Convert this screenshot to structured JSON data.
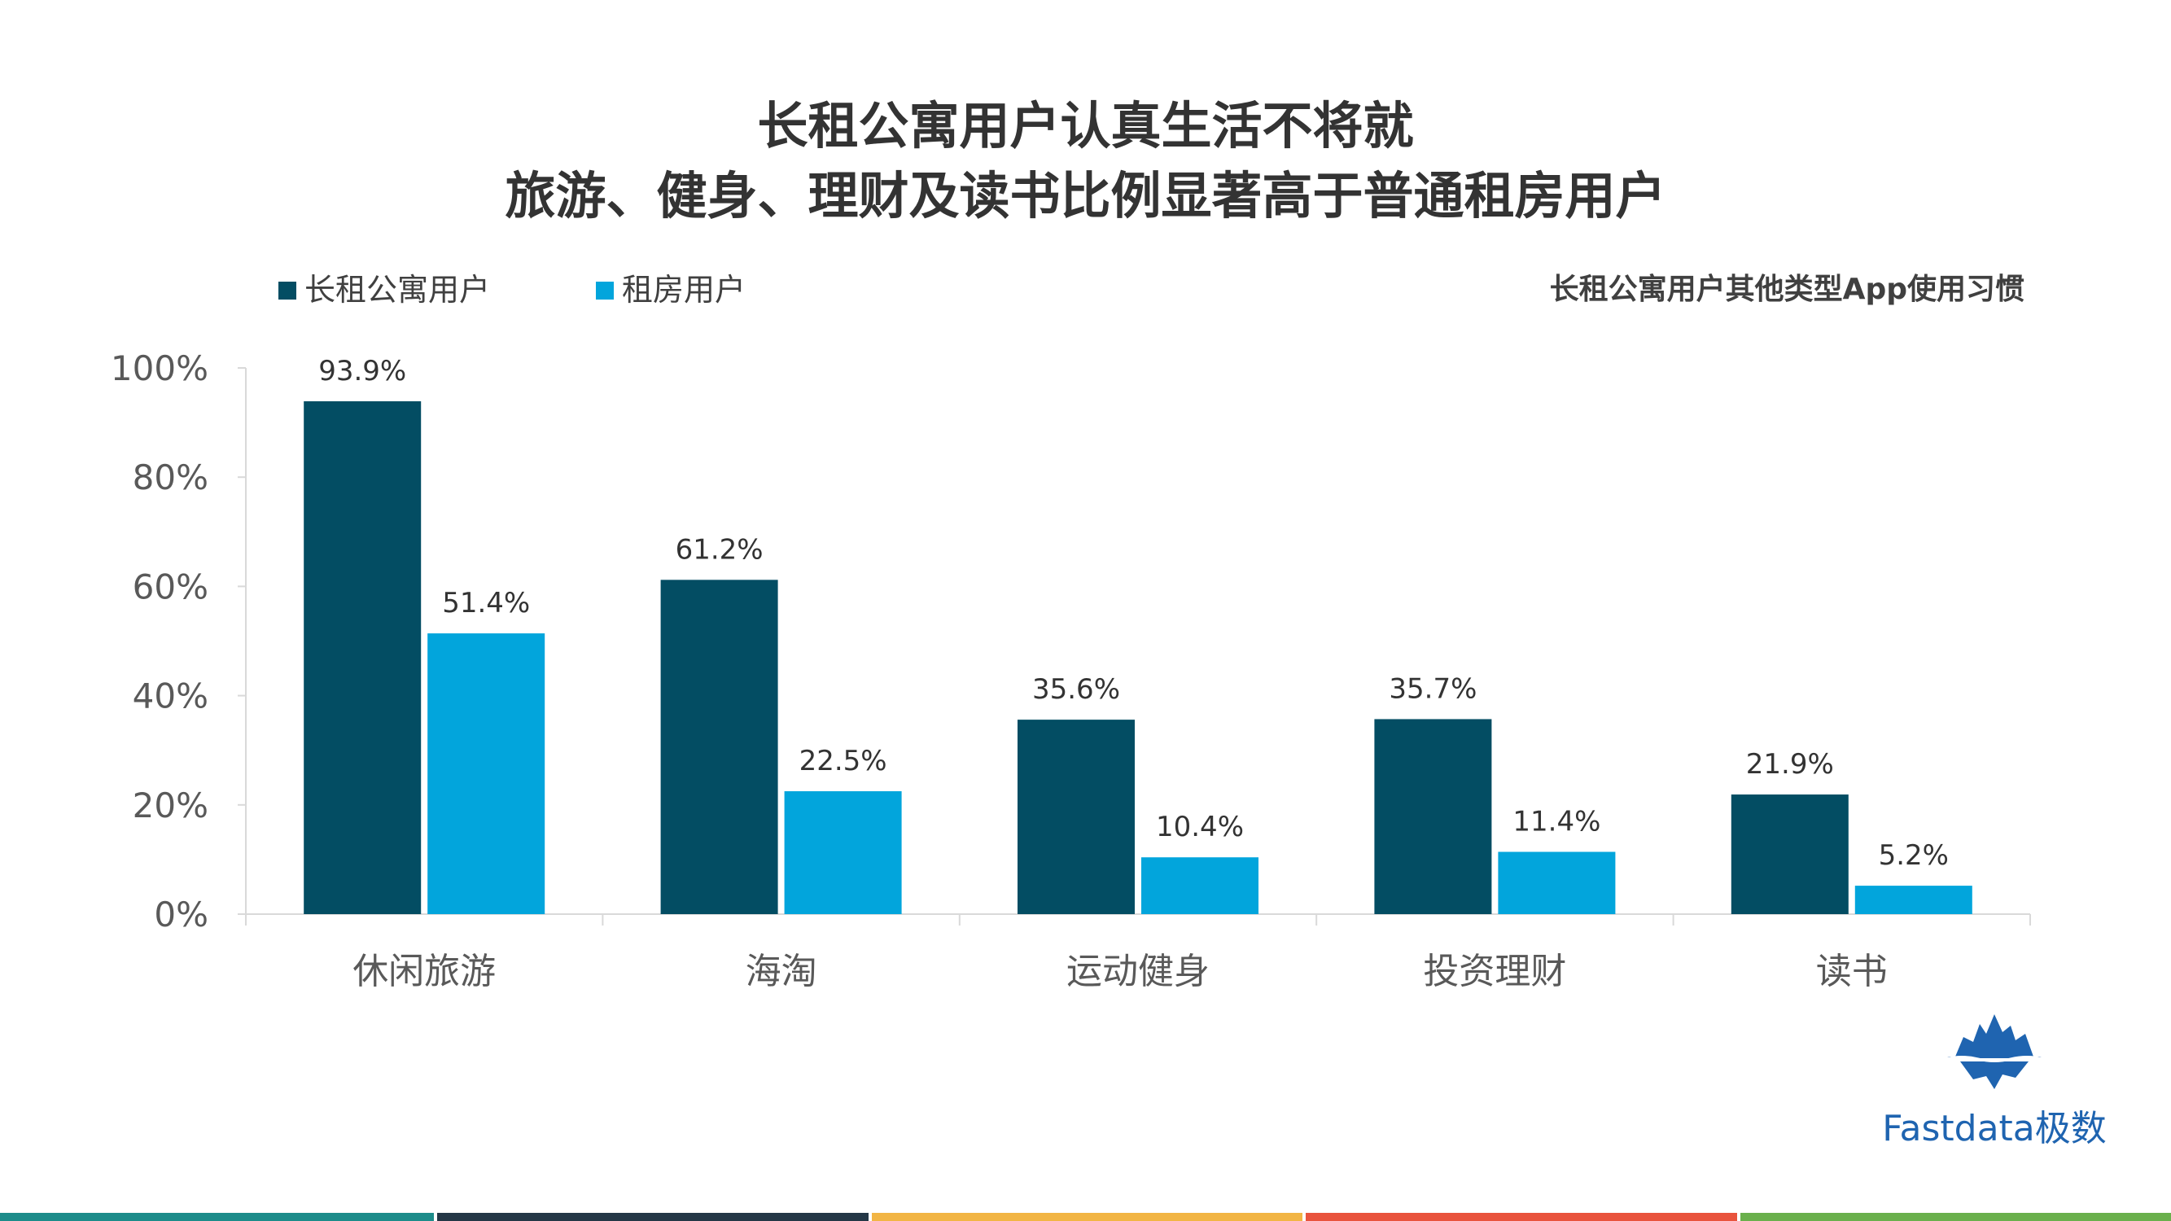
{
  "header": {
    "title_line1": "长租公寓用户认真生活不将就",
    "title_line2": "旅游、健身、理财及读书比例显著高于普通租房用户",
    "subtitle": "长租公寓用户其他类型App使用习惯"
  },
  "colors": {
    "series1": "#034d63",
    "series2": "#02a5dc",
    "axis": "#d9d9d9",
    "footer": [
      "#1d8c8a",
      "#243746",
      "#f2b544",
      "#e9533d",
      "#6ab04c"
    ]
  },
  "brand": {
    "name": "Fastdata极数",
    "icon": "iceberg-logo"
  },
  "chart_data": {
    "type": "bar",
    "categories": [
      "休闲旅游",
      "海淘",
      "运动健身",
      "投资理财",
      "读书"
    ],
    "series": [
      {
        "name": "长租公寓用户",
        "values": [
          93.9,
          61.2,
          35.6,
          35.7,
          21.9
        ],
        "labels": [
          "93.9%",
          "61.2%",
          "35.6%",
          "35.7%",
          "21.9%"
        ]
      },
      {
        "name": "租房用户",
        "values": [
          51.4,
          22.5,
          10.4,
          11.4,
          5.2
        ],
        "labels": [
          "51.4%",
          "22.5%",
          "10.4%",
          "11.4%",
          "5.2%"
        ]
      }
    ],
    "yticks": [
      "0%",
      "20%",
      "40%",
      "60%",
      "80%",
      "100%"
    ],
    "ylim": [
      0,
      100
    ],
    "grid": false,
    "legend_position": "top-left"
  }
}
